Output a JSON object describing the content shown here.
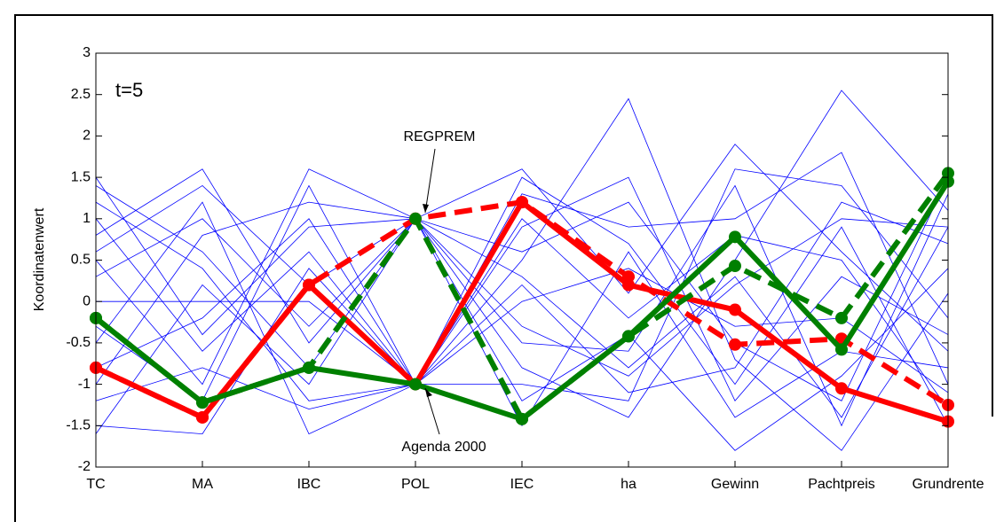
{
  "chart_data": {
    "type": "parallel",
    "ylabel": "Koordinatenwert",
    "annotations": [
      "t=5",
      "REGPREM",
      "Agenda 2000"
    ],
    "categories": [
      "TC",
      "MA",
      "IBC",
      "POL",
      "IEC",
      "ha",
      "Gewinn",
      "Pachtpreis",
      "Grundrente"
    ],
    "ylim": [
      -2,
      3
    ],
    "yticks": [
      -2,
      -1.5,
      -1,
      -0.5,
      0,
      0.5,
      1,
      1.5,
      2,
      2.5,
      3
    ],
    "background_color": "#0000ff",
    "background_lines": [
      [
        1.5,
        -0.4,
        0.9,
        1,
        -0.3,
        -0.9,
        0.2,
        1.0,
        0.9
      ],
      [
        1.2,
        0.4,
        -1.2,
        -1,
        0.5,
        2.45,
        -0.7,
        -1.8,
        0.1
      ],
      [
        0.8,
        1.6,
        -0.5,
        1,
        1.6,
        0.1,
        1.9,
        0.6,
        -0.6
      ],
      [
        0.5,
        -1.0,
        1.6,
        1,
        -0.8,
        -1.4,
        0.5,
        2.55,
        1.1
      ],
      [
        0,
        0,
        0,
        -1,
        0,
        0.4,
        -0.3,
        -0.2,
        -1.1
      ],
      [
        -0.5,
        1.2,
        -1.6,
        -1,
        0.9,
        1.5,
        -1.2,
        0.3,
        -0.4
      ],
      [
        -1.0,
        0.8,
        1.2,
        1,
        -1.2,
        -0.4,
        -1.8,
        -0.9,
        0.4
      ],
      [
        -1.5,
        -1.6,
        0.4,
        -1,
        1.3,
        0.9,
        1.0,
        1.8,
        -1.0
      ],
      [
        -1.6,
        0.2,
        -1.0,
        1,
        -0.5,
        -0.6,
        1.4,
        -1.5,
        1.3
      ],
      [
        1.0,
        -0.6,
        0.6,
        -1,
        0.2,
        -1.1,
        -0.8,
        1.2,
        0.7
      ],
      [
        0.3,
        1.0,
        -0.3,
        1,
        -1.5,
        0.6,
        -1.4,
        -0.6,
        -0.8
      ],
      [
        -0.3,
        -1.2,
        1.4,
        -1,
        1.0,
        -0.2,
        0.8,
        0.5,
        -1.3
      ],
      [
        1.4,
        0.6,
        -0.8,
        1,
        0.6,
        1.2,
        -0.5,
        -1.2,
        1.5
      ],
      [
        -0.8,
        -0.2,
        1.0,
        -1,
        -1.0,
        -1.2,
        1.6,
        1.4,
        -0.2
      ],
      [
        0.6,
        1.4,
        0.2,
        1,
        0.3,
        -0.8,
        0.3,
        -1.4,
        0.9
      ],
      [
        -1.2,
        -0.8,
        -1.3,
        -1,
        1.5,
        0.7,
        -1.0,
        0.9,
        -1.5
      ]
    ],
    "series": [
      {
        "color": "#ff0000",
        "dashed": true,
        "values": [
          -0.8,
          -1.4,
          0.2,
          1.0,
          1.2,
          0.3,
          -0.52,
          -0.45,
          -1.25
        ]
      },
      {
        "color": "#ff0000",
        "dashed": false,
        "values": [
          -0.8,
          -1.4,
          0.2,
          -1.0,
          1.2,
          0.2,
          -0.1,
          -1.05,
          -1.45
        ]
      },
      {
        "color": "#008000",
        "dashed": true,
        "values": [
          -0.2,
          -1.22,
          -0.8,
          1.0,
          -1.42,
          -0.42,
          0.43,
          -0.2,
          1.55
        ]
      },
      {
        "color": "#008000",
        "dashed": false,
        "values": [
          -0.2,
          -1.22,
          -0.8,
          -1.0,
          -1.42,
          -0.42,
          0.78,
          -0.58,
          1.45
        ]
      }
    ]
  }
}
